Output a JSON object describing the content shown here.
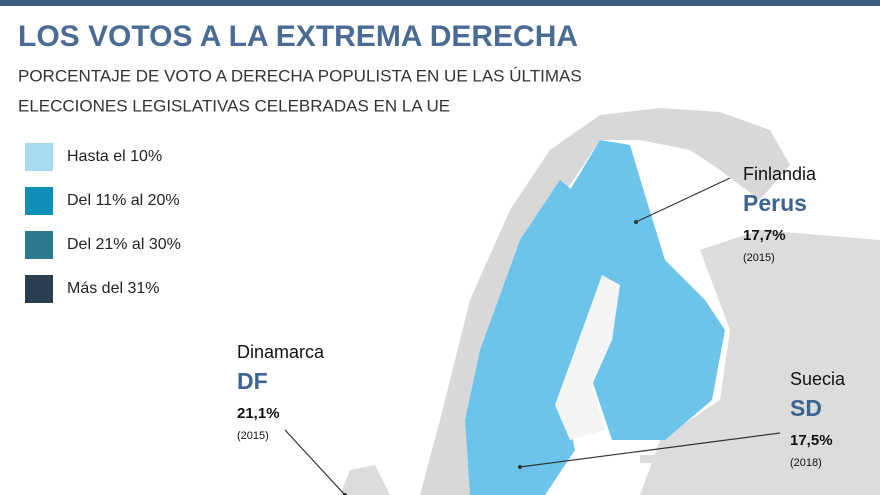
{
  "header": {
    "title": "LOS VOTOS A LA EXTREMA DERECHA",
    "subtitle": [
      "PORCENTAJE DE VOTO A DERECHA POPULISTA EN UE LAS ÚLTIMAS",
      "ELECCIONES LEGISLATIVAS CELEBRADAS EN LA UE"
    ]
  },
  "legend": [
    {
      "label": "Hasta el 10%",
      "color": "#a7d9ef"
    },
    {
      "label": "Del 11% al 20%",
      "color": "#0f8fb8"
    },
    {
      "label": "Del 21% al 30%",
      "color": "#2b7a8d"
    },
    {
      "label": "Más del 31%",
      "color": "#2b3e4f"
    }
  ],
  "annotations": [
    {
      "country": "Finlandia",
      "party": "Perus",
      "percent": "17,7%",
      "year": "(2015)"
    },
    {
      "country": "Dinamarca",
      "party": "DF",
      "percent": "21,1%",
      "year": "(2015)"
    },
    {
      "country": "Suecia",
      "party": "SD",
      "percent": "17,5%",
      "year": "(2018)"
    }
  ]
}
